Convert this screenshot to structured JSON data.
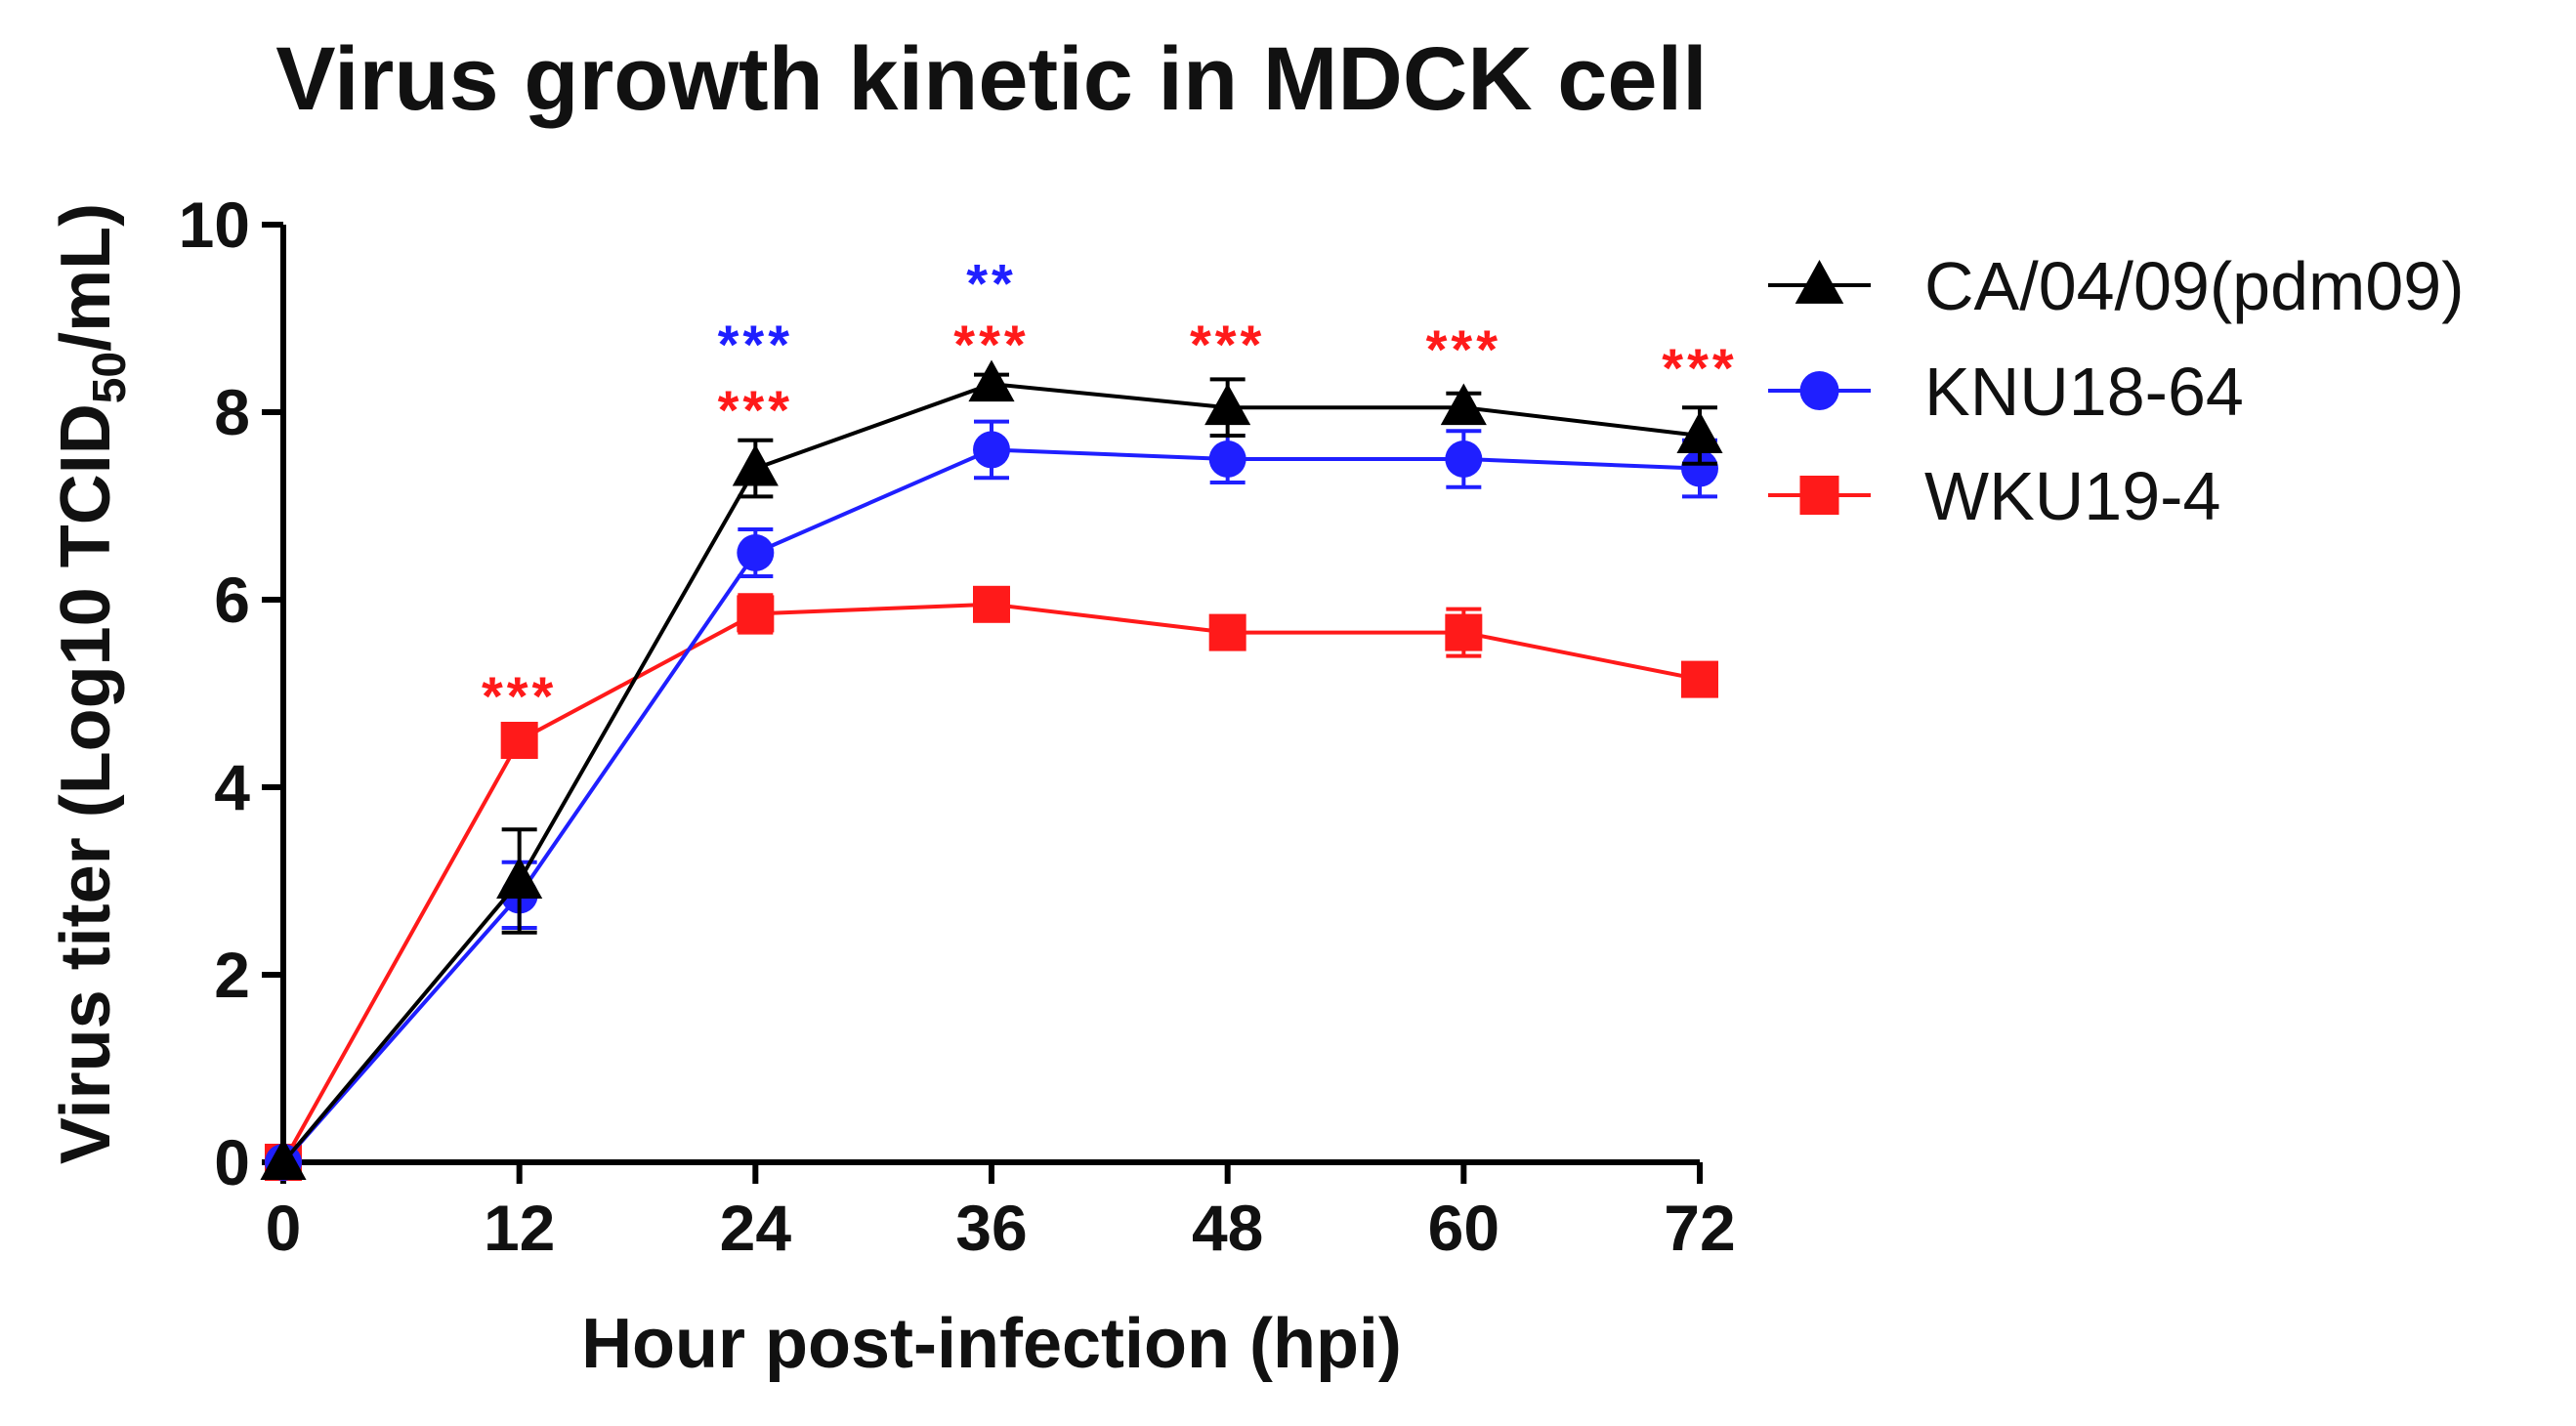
{
  "chart_data": {
    "type": "line",
    "title": "Virus growth kinetic in MDCK cell",
    "xlabel": "Hour post-infection (hpi)",
    "ylabel_prefix": "Virus titer (Log10 TCID",
    "ylabel_sub": "50",
    "ylabel_suffix": "/mL)",
    "x": [
      0,
      12,
      24,
      36,
      48,
      60,
      72
    ],
    "x_ticks": [
      "0",
      "12",
      "24",
      "36",
      "48",
      "60",
      "72"
    ],
    "xlim": [
      0,
      72
    ],
    "ylim": [
      0,
      10
    ],
    "y_ticks": [
      "0",
      "2",
      "4",
      "6",
      "8",
      "10"
    ],
    "grid": false,
    "legend_position": "top-right",
    "series": [
      {
        "name": "CA/04/09(pdm09)",
        "color": "#000000",
        "marker": "triangle",
        "values": [
          0,
          3.0,
          7.4,
          8.3,
          8.05,
          8.05,
          7.75
        ],
        "errors": [
          0,
          0.55,
          0.3,
          0.1,
          0.3,
          0.15,
          0.3
        ]
      },
      {
        "name": "KNU18-64",
        "color": "#1f1fff",
        "marker": "circle",
        "values": [
          0,
          2.85,
          6.5,
          7.6,
          7.5,
          7.5,
          7.4
        ],
        "errors": [
          0,
          0.35,
          0.25,
          0.3,
          0.25,
          0.3,
          0.3
        ]
      },
      {
        "name": "WKU19-4",
        "color": "#ff1a1a",
        "marker": "square",
        "values": [
          0,
          4.5,
          5.85,
          5.95,
          5.65,
          5.65,
          5.15
        ],
        "errors": [
          0,
          0,
          0.2,
          0.1,
          0.1,
          0.25,
          0.1
        ]
      }
    ],
    "annotations": [
      {
        "x": 12,
        "y_level": 5.0,
        "text": "***",
        "color": "#ff1a1a"
      },
      {
        "x": 24,
        "y_level": 8.75,
        "text": "***",
        "color": "#1f1fff"
      },
      {
        "x": 24,
        "y_level": 8.05,
        "text": "***",
        "color": "#ff1a1a"
      },
      {
        "x": 36,
        "y_level": 9.4,
        "text": "**",
        "color": "#1f1fff"
      },
      {
        "x": 36,
        "y_level": 8.75,
        "text": "***",
        "color": "#ff1a1a"
      },
      {
        "x": 48,
        "y_level": 8.75,
        "text": "***",
        "color": "#ff1a1a"
      },
      {
        "x": 60,
        "y_level": 8.7,
        "text": "***",
        "color": "#ff1a1a"
      },
      {
        "x": 72,
        "y_level": 8.5,
        "text": "***",
        "color": "#ff1a1a"
      }
    ]
  }
}
